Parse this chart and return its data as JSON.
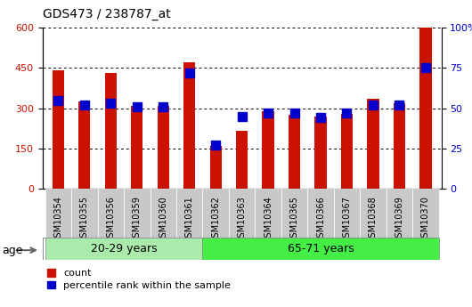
{
  "title": "GDS473 / 238787_at",
  "samples": [
    "GSM10354",
    "GSM10355",
    "GSM10356",
    "GSM10359",
    "GSM10360",
    "GSM10361",
    "GSM10362",
    "GSM10363",
    "GSM10364",
    "GSM10365",
    "GSM10366",
    "GSM10367",
    "GSM10368",
    "GSM10369",
    "GSM10370"
  ],
  "counts": [
    440,
    325,
    430,
    307,
    310,
    470,
    160,
    215,
    290,
    275,
    270,
    280,
    335,
    320,
    600
  ],
  "percentiles": [
    55,
    52,
    53,
    51,
    51,
    72,
    27,
    45,
    47,
    47,
    44,
    47,
    52,
    52,
    75
  ],
  "groups": [
    {
      "label": "20-29 years",
      "start": 0,
      "end": 6
    },
    {
      "label": "65-71 years",
      "start": 6,
      "end": 15
    }
  ],
  "bar_color_count": "#CC1100",
  "bar_color_pct": "#0000CC",
  "left_ylim": [
    0,
    600
  ],
  "right_ylim": [
    0,
    100
  ],
  "left_yticks": [
    0,
    150,
    300,
    450,
    600
  ],
  "right_yticks": [
    0,
    25,
    50,
    75,
    100
  ],
  "right_ytick_labels": [
    "0",
    "25",
    "50",
    "75",
    "100%"
  ],
  "left_ycolor": "#CC1100",
  "right_ycolor": "#0000CC",
  "age_label": "age",
  "legend_count_label": "count",
  "legend_pct_label": "percentile rank within the sample",
  "group_color_1": "#aaeaaa",
  "group_color_2": "#44ee44",
  "tick_bg": "#C8C8C8"
}
